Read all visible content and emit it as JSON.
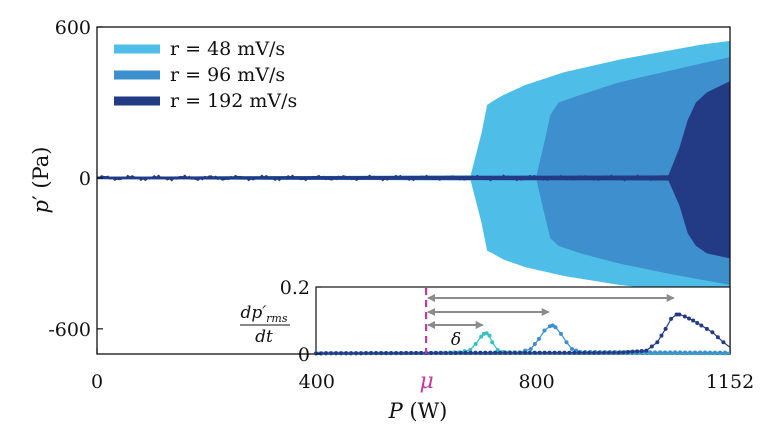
{
  "chart_data": [
    {
      "type": "area",
      "xlabel": "P (W)",
      "ylabel": "p′ (Pa)",
      "xlim": [
        0,
        1152
      ],
      "ylim": [
        -700,
        600
      ],
      "x_ticks": [
        "0",
        "400",
        "μ",
        "800",
        "1152"
      ],
      "x_tick_values": [
        0,
        400,
        600,
        800,
        1152
      ],
      "y_ticks": [
        "600",
        "0",
        "-600"
      ],
      "y_tick_values": [
        600,
        0,
        -600
      ],
      "legend_position": "top-left",
      "series": [
        {
          "name": "r = 48 mV/s",
          "color": "#4ebee8",
          "envelope_x": [
            0,
            680,
            700,
            710,
            720,
            740,
            780,
            850,
            950,
            1050,
            1100,
            1152
          ],
          "envelope_upper": [
            5,
            10,
            180,
            290,
            305,
            330,
            370,
            420,
            470,
            510,
            530,
            545
          ],
          "envelope_lower": [
            -5,
            -10,
            -180,
            -290,
            -300,
            -325,
            -355,
            -390,
            -425,
            -450,
            -462,
            -475
          ]
        },
        {
          "name": "r = 96 mV/s",
          "color": "#3d8fcd",
          "envelope_x": [
            0,
            800,
            815,
            825,
            840,
            880,
            950,
            1050,
            1100,
            1152
          ],
          "envelope_upper": [
            5,
            10,
            150,
            250,
            300,
            330,
            380,
            430,
            455,
            480
          ],
          "envelope_lower": [
            -5,
            -10,
            -150,
            -240,
            -270,
            -300,
            -340,
            -385,
            -405,
            -425
          ]
        },
        {
          "name": "r = 192 mV/s",
          "color": "#233a85",
          "envelope_x": [
            0,
            1040,
            1060,
            1075,
            1090,
            1110,
            1152
          ],
          "envelope_upper": [
            5,
            10,
            120,
            230,
            300,
            340,
            385
          ],
          "envelope_lower": [
            -5,
            -10,
            -110,
            -220,
            -270,
            -300,
            -320
          ]
        }
      ]
    },
    {
      "type": "scatter",
      "ylabel": "dp′rms/dt",
      "xlim": [
        400,
        1152
      ],
      "ylim": [
        0,
        0.2
      ],
      "y_ticks": [
        "0.2",
        "0"
      ],
      "y_tick_values": [
        0.2,
        0
      ],
      "mu_x": 600,
      "delta_label": "δ",
      "mu_label": "μ",
      "series": [
        {
          "name": "r = 48 mV/s",
          "color": "#38c1c1",
          "peak_x": 710,
          "x": [
            400,
            600,
            660,
            680,
            690,
            700,
            705,
            710,
            715,
            720,
            730,
            740,
            760,
            1152
          ],
          "y": [
            0.002,
            0.003,
            0.005,
            0.012,
            0.03,
            0.052,
            0.06,
            0.062,
            0.055,
            0.035,
            0.012,
            0.006,
            0.004,
            0.002
          ]
        },
        {
          "name": "r = 96 mV/s",
          "color": "#3d8fcd",
          "peak_x": 830,
          "x": [
            400,
            600,
            770,
            790,
            805,
            815,
            825,
            830,
            835,
            845,
            855,
            865,
            880,
            1152
          ],
          "y": [
            0.002,
            0.003,
            0.005,
            0.015,
            0.045,
            0.07,
            0.083,
            0.085,
            0.08,
            0.06,
            0.035,
            0.015,
            0.006,
            0.004
          ]
        },
        {
          "name": "r = 192 mV/s",
          "color": "#233a85",
          "peak_x": 1057,
          "x": [
            400,
            600,
            950,
            1000,
            1020,
            1035,
            1045,
            1055,
            1060,
            1070,
            1085,
            1100,
            1120,
            1140,
            1152
          ],
          "y": [
            0.002,
            0.003,
            0.004,
            0.01,
            0.035,
            0.075,
            0.105,
            0.118,
            0.118,
            0.112,
            0.1,
            0.085,
            0.065,
            0.035,
            0.02
          ]
        }
      ]
    }
  ]
}
